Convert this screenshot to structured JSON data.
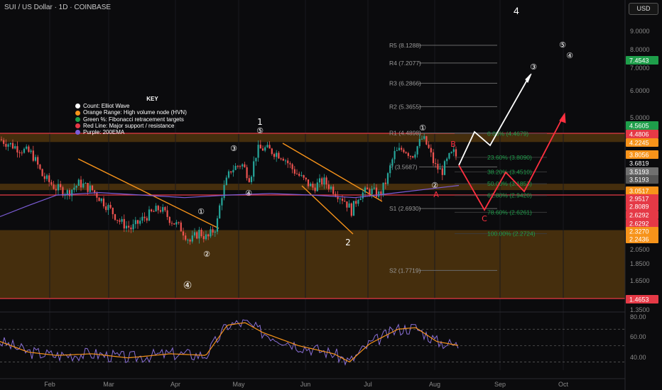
{
  "title": "SUI / US Dollar · 1D · COINBASE",
  "currency_button": "USD",
  "top_label": "4",
  "key": {
    "title": "KEY",
    "items": [
      {
        "label": "Count: Elliot Wave",
        "color": "#ffffff"
      },
      {
        "label": "Orange Range: High volume node (HVN)",
        "color": "#f7931a"
      },
      {
        "label": "Green %: Fibonacci retracement targets",
        "color": "#1e9e4a"
      },
      {
        "label": "Red Line: Major support / resistance",
        "color": "#e53946"
      },
      {
        "label": "Purple: 200EMA",
        "color": "#7b5cd6"
      }
    ]
  },
  "chart_data": [
    {
      "type": "candlestick",
      "symbol": "SUI / US Dollar",
      "interval": "1D",
      "exchange": "COINBASE",
      "x_ticks": [
        "Feb",
        "Mar",
        "Apr",
        "May",
        "Jun",
        "Jul",
        "Aug",
        "Sep",
        "Oct"
      ],
      "y_ticks": [
        "9.0000",
        "8.0000",
        "7.0000",
        "6.0000",
        "5.0000",
        "2.0500",
        "1.8500",
        "1.6500",
        "1.3500"
      ],
      "y_scale": "log",
      "price_badges": [
        {
          "value": "7.4543",
          "color": "#1e9e4a"
        },
        {
          "value": "4.5605",
          "color": "#1e9e4a"
        },
        {
          "value": "4.4806",
          "color": "#e53946"
        },
        {
          "value": "4.2245",
          "color": "#f7931a"
        },
        {
          "value": "3.8056",
          "color": "#f7931a"
        },
        {
          "value": "3.6819",
          "color": "#0b0b0d"
        },
        {
          "value": "3.5193",
          "color": "#707070"
        },
        {
          "value": "3.5193",
          "color": "#555555"
        },
        {
          "value": "3.0517",
          "color": "#f7931a"
        },
        {
          "value": "2.9517",
          "color": "#e53946"
        },
        {
          "value": "2.8089",
          "color": "#e53946"
        },
        {
          "value": "2.6292",
          "color": "#e53946"
        },
        {
          "value": "2.6292",
          "color": "#e53946"
        },
        {
          "value": "2.3270",
          "color": "#f7931a"
        },
        {
          "value": "2.2436",
          "color": "#f7931a"
        },
        {
          "value": "1.4653",
          "color": "#e53946"
        }
      ],
      "pivots": [
        {
          "label": "R5 (8.1288)",
          "value": 8.1288
        },
        {
          "label": "R4 (7.2077)",
          "value": 7.2077
        },
        {
          "label": "R3 (6.2866)",
          "value": 6.2866
        },
        {
          "label": "R2 (5.3655)",
          "value": 5.3655
        },
        {
          "label": "R1 (4.4898)",
          "value": 4.4898
        },
        {
          "label": "P (3.5687)",
          "value": 3.5687
        },
        {
          "label": "S1 (2.6930)",
          "value": 2.693
        },
        {
          "label": "S2 (1.7719)",
          "value": 1.7719
        }
      ],
      "fib_levels": [
        {
          "label": "0.00% (4.4679)",
          "value": 4.4679
        },
        {
          "label": "23.60% (3.8090)",
          "value": 3.809
        },
        {
          "label": "38.20% (3.4510)",
          "value": 3.451
        },
        {
          "label": "50.00% (3.1853)",
          "value": 3.1853
        },
        {
          "label": "61.80% (2.9420)",
          "value": 2.942
        },
        {
          "label": "78.60% (2.6261)",
          "value": 2.6261
        },
        {
          "label": "100.00% (2.2724)",
          "value": 2.2724
        }
      ],
      "hvn_zones": [
        {
          "from": 4.2245,
          "to": 4.4806
        },
        {
          "from": 3.0517,
          "to": 3.1853
        },
        {
          "from": 1.4653,
          "to": 2.327
        }
      ],
      "support_resistance": [
        4.4806,
        2.9517,
        1.4653
      ],
      "wave_labels": [
        "1",
        "2",
        "4",
        "A",
        "B",
        "C",
        "①",
        "②",
        "③",
        "④",
        "⑤"
      ],
      "ema200": "purple"
    },
    {
      "type": "line",
      "name": "RSI",
      "y_ticks": [
        "80.00",
        "60.00",
        "40.00"
      ],
      "ylim": [
        20,
        85
      ],
      "levels": [
        70,
        50,
        30
      ]
    }
  ],
  "colors": {
    "up": "#26a69a",
    "down": "#ef5350",
    "hvn": "#f7931a",
    "fib": "#1e9e4a",
    "sr": "#e53946",
    "ema": "#7b5cd6",
    "rsi": "#8a6fd6",
    "rsi_ma": "#f7931a",
    "white_path": "#ffffff",
    "red_path": "#ff3040"
  }
}
